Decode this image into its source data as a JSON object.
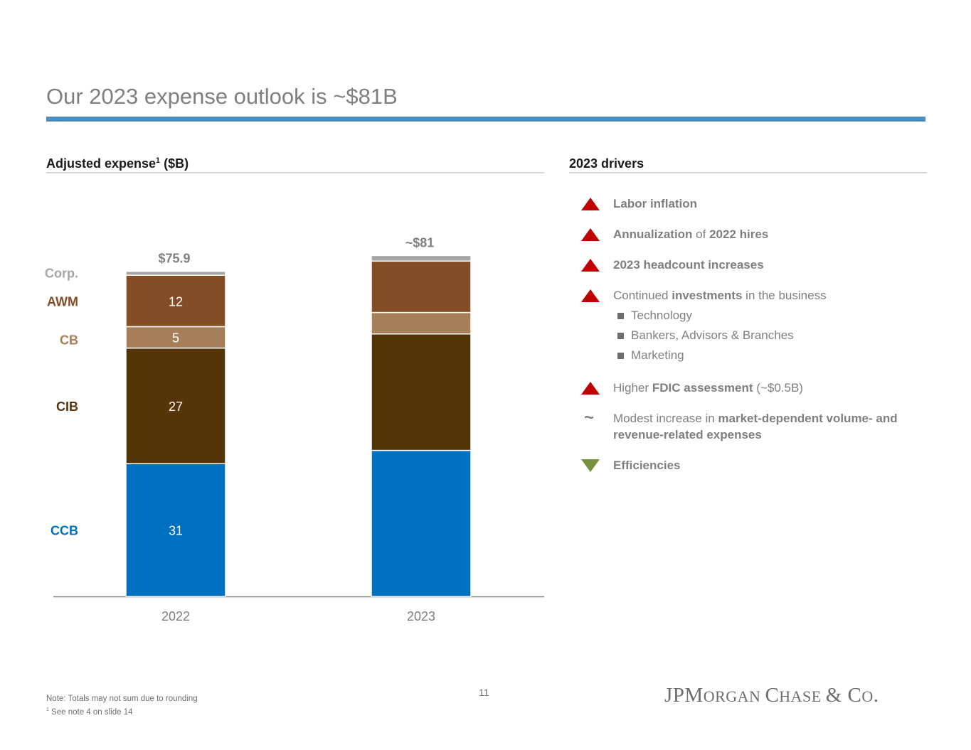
{
  "slide": {
    "title": "Our 2023 expense outlook is ~$81B",
    "left_heading": "Adjusted expense",
    "left_heading_sup": "1",
    "left_heading_unit": "($B)",
    "right_heading": "2023 drivers",
    "page_number": "11",
    "footnote_line1": "Note: Totals may not sum due to rounding",
    "footnote_line2_sup": "1",
    "footnote_line2": "See note 4 on slide 14",
    "logo_parts": [
      "JPM",
      "ORGAN ",
      "C",
      "HASE ",
      "&",
      " C",
      "O",
      "."
    ]
  },
  "colors": {
    "CCB": "#0070c0",
    "CIB": "#553408",
    "CB": "#a67e57",
    "AWM": "#834d28",
    "Corp.": "#a5a5a5",
    "title_rule": "#4a8ebf",
    "up_marker": "#c00000",
    "down_marker": "#76923c"
  },
  "chart_data": {
    "type": "bar",
    "stacked": true,
    "title": "Adjusted expense ($B)",
    "categories": [
      "2022",
      "2023"
    ],
    "series": [
      {
        "name": "CCB",
        "values": [
          31,
          34.1
        ]
      },
      {
        "name": "CIB",
        "values": [
          27,
          27.2
        ]
      },
      {
        "name": "CB",
        "values": [
          5,
          5
        ]
      },
      {
        "name": "AWM",
        "values": [
          12,
          12
        ]
      },
      {
        "name": "Corp.",
        "values": [
          0.9,
          1.3
        ]
      }
    ],
    "segment_labels": [
      [
        "31",
        "27",
        "5",
        "12",
        ""
      ],
      [
        "",
        "",
        "",
        "",
        ""
      ]
    ],
    "totals": [
      "$75.9",
      "~$81"
    ],
    "series_label_colors": [
      "#0070c0",
      "#553408",
      "#a67e57",
      "#834d28",
      "#a5a5a5"
    ],
    "ylim": [
      0,
      81.5
    ],
    "xlabel": "",
    "ylabel": "",
    "grid": false
  },
  "drivers": [
    {
      "marker": "up",
      "parts": [
        {
          "t": "Labor inflation",
          "b": true
        }
      ],
      "subs": []
    },
    {
      "marker": "up",
      "parts": [
        {
          "t": "Annualization",
          "b": true
        },
        {
          "t": " of ",
          "b": false
        },
        {
          "t": "2022 hires",
          "b": true
        }
      ],
      "subs": []
    },
    {
      "marker": "up",
      "parts": [
        {
          "t": "2023 headcount increases",
          "b": true
        }
      ],
      "subs": []
    },
    {
      "marker": "up",
      "parts": [
        {
          "t": "Continued ",
          "b": false
        },
        {
          "t": "investments",
          "b": true
        },
        {
          "t": " in the business",
          "b": false
        }
      ],
      "subs": [
        "Technology",
        "Bankers, Advisors & Branches",
        "Marketing"
      ]
    },
    {
      "marker": "up",
      "parts": [
        {
          "t": "Higher ",
          "b": false
        },
        {
          "t": "FDIC assessment",
          "b": true
        },
        {
          "t": " (~$0.5B)",
          "b": false
        }
      ],
      "subs": []
    },
    {
      "marker": "tilde",
      "tilde_text": "~",
      "parts": [
        {
          "t": "Modest increase in ",
          "b": false
        },
        {
          "t": "market-dependent volume- and revenue-related expenses",
          "b": true
        }
      ],
      "subs": []
    },
    {
      "marker": "down",
      "parts": [
        {
          "t": "Efficiencies",
          "b": true
        }
      ],
      "subs": []
    }
  ]
}
